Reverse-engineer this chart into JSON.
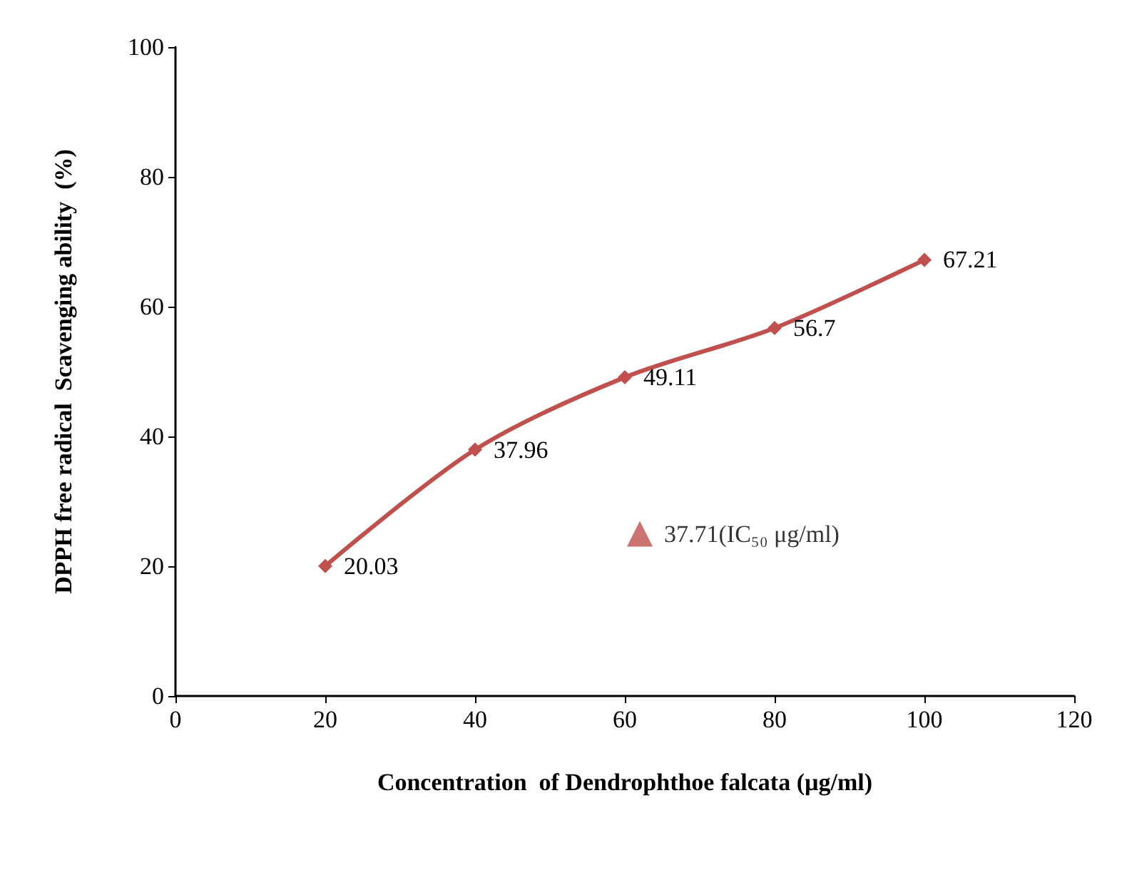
{
  "chart_data": {
    "type": "line",
    "xlabel": "Concentration  of Dendrophthoe falcata (µg/ml)",
    "ylabel": "DPPH free radical  Scavenging ability  (%)",
    "xlim": [
      0,
      120
    ],
    "xticks": [
      0,
      20,
      40,
      60,
      80,
      100,
      120
    ],
    "ylim": [
      0,
      100
    ],
    "yticks": [
      0,
      20,
      40,
      60,
      80,
      100
    ],
    "grid": false,
    "annotations": [
      {
        "text": "37.71(IC₅₀ μg/ml)",
        "x": 62,
        "y": 25
      }
    ],
    "series": [
      {
        "color": "#c0504d",
        "marker": "diamond",
        "x": [
          20,
          40,
          60,
          80,
          100
        ],
        "values": [
          20.03,
          37.96,
          49.11,
          56.7,
          67.21
        ],
        "data_labels": true
      }
    ]
  }
}
